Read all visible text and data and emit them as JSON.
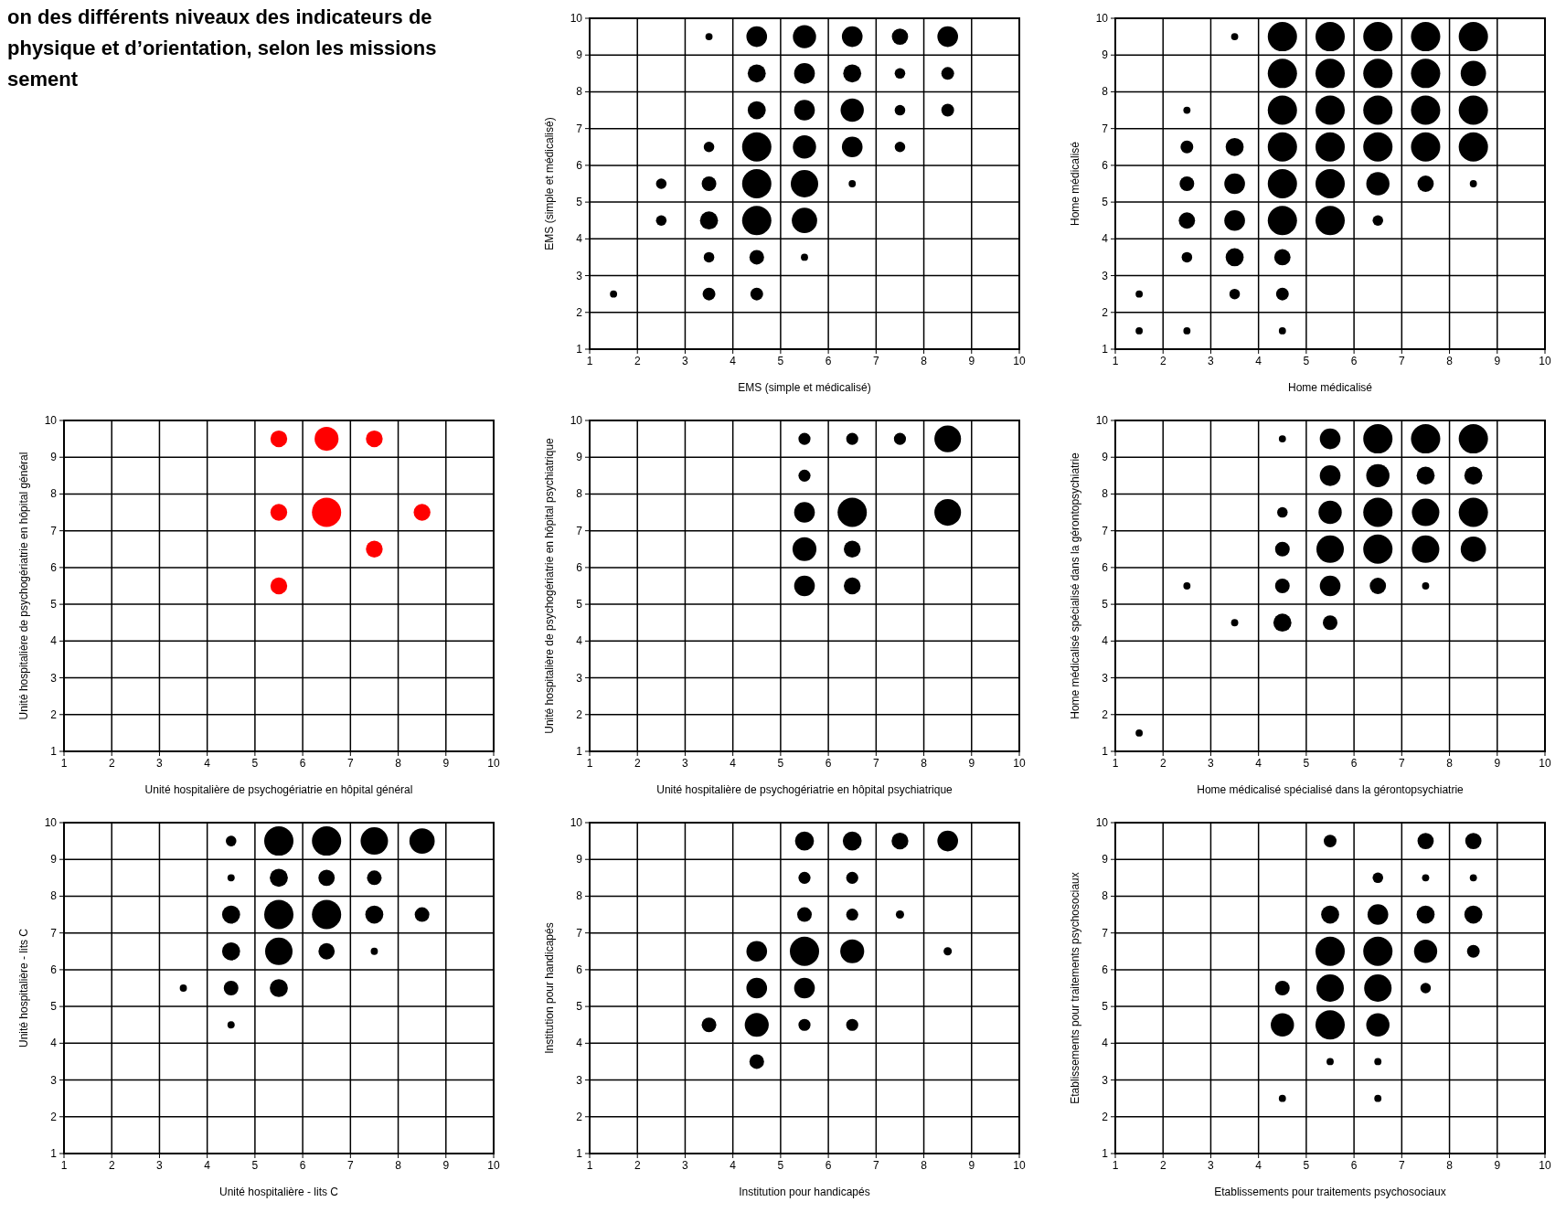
{
  "chart_data": [
    {
      "type": "other",
      "title": "on des différents niveaux des indicateurs de\nphysique et d’orientation, selon les missions\nsement"
    },
    {
      "type": "bubble",
      "xlabel": "EMS (simple et médicalisé)",
      "ylabel": "EMS (simple et médicalisé)",
      "xlim": [
        1,
        10
      ],
      "ylim": [
        1,
        10
      ],
      "xticks": [
        1,
        2,
        3,
        4,
        5,
        6,
        7,
        8,
        9,
        10
      ],
      "yticks": [
        1,
        2,
        3,
        4,
        5,
        6,
        7,
        8,
        9,
        10
      ],
      "grid": true,
      "marker": "circle",
      "series": [
        {
          "color": "#000000",
          "x": [
            3.5,
            4.5,
            5.5,
            6.5,
            7.5,
            8.5,
            4.5,
            5.5,
            6.5,
            7.5,
            8.5,
            4.5,
            5.5,
            6.5,
            7.5,
            8.5,
            3.5,
            4.5,
            5.5,
            6.5,
            7.5,
            2.5,
            3.5,
            4.5,
            5.5,
            6.5,
            2.5,
            3.5,
            4.5,
            5.5,
            3.5,
            4.5,
            5.5,
            1.5,
            3.5,
            4.5
          ],
          "values": [
            9.5,
            9.5,
            9.5,
            9.5,
            9.5,
            9.5,
            8.5,
            8.5,
            8.5,
            8.5,
            8.5,
            7.5,
            7.5,
            7.5,
            7.5,
            7.5,
            6.5,
            6.5,
            6.5,
            6.5,
            6.5,
            5.5,
            5.5,
            5.5,
            5.5,
            5.5,
            4.5,
            4.5,
            4.5,
            4.5,
            3.5,
            3.5,
            3.5,
            2.5,
            2.5,
            2.5
          ],
          "sizes": [
            0.06,
            0.5,
            0.63,
            0.5,
            0.31,
            0.5,
            0.38,
            0.5,
            0.38,
            0.13,
            0.19,
            0.38,
            0.5,
            0.63,
            0.13,
            0.19,
            0.13,
            1,
            0.63,
            0.5,
            0.13,
            0.13,
            0.25,
            1,
            0.88,
            0.06,
            0.13,
            0.38,
            1,
            0.75,
            0.13,
            0.25,
            0.06,
            0.06,
            0.19,
            0.19
          ]
        }
      ]
    },
    {
      "type": "bubble",
      "xlabel": "Home médicalisé",
      "ylabel": "Home médicalisé",
      "xlim": [
        1,
        10
      ],
      "ylim": [
        1,
        10
      ],
      "xticks": [
        1,
        2,
        3,
        4,
        5,
        6,
        7,
        8,
        9,
        10
      ],
      "yticks": [
        1,
        2,
        3,
        4,
        5,
        6,
        7,
        8,
        9,
        10
      ],
      "grid": true,
      "marker": "circle",
      "series": [
        {
          "color": "#000000",
          "x": [
            3.5,
            4.5,
            5.5,
            6.5,
            7.5,
            8.5,
            4.5,
            5.5,
            6.5,
            7.5,
            8.5,
            2.5,
            4.5,
            5.5,
            6.5,
            7.5,
            8.5,
            2.5,
            3.5,
            4.5,
            5.5,
            6.5,
            7.5,
            8.5,
            2.5,
            3.5,
            4.5,
            5.5,
            6.5,
            7.5,
            8.5,
            2.5,
            3.5,
            4.5,
            5.5,
            6.5,
            2.5,
            3.5,
            4.5,
            1.5,
            3.5,
            4.5,
            1.5,
            2.5,
            4.5
          ],
          "values": [
            9.5,
            9.5,
            9.5,
            9.5,
            9.5,
            9.5,
            8.5,
            8.5,
            8.5,
            8.5,
            8.5,
            7.5,
            7.5,
            7.5,
            7.5,
            7.5,
            7.5,
            6.5,
            6.5,
            6.5,
            6.5,
            6.5,
            6.5,
            6.5,
            5.5,
            5.5,
            5.5,
            5.5,
            5.5,
            5.5,
            5.5,
            4.5,
            4.5,
            4.5,
            4.5,
            4.5,
            3.5,
            3.5,
            3.5,
            2.5,
            2.5,
            2.5,
            1.5,
            1.5,
            1.5
          ],
          "sizes": [
            0.06,
            1,
            1,
            1,
            1,
            1,
            1,
            1,
            1,
            1,
            0.75,
            0.06,
            1,
            1,
            1,
            1,
            1,
            0.19,
            0.38,
            1,
            1,
            1,
            1,
            1,
            0.25,
            0.5,
            1,
            1,
            0.63,
            0.31,
            0.06,
            0.31,
            0.5,
            1,
            1,
            0.13,
            0.13,
            0.38,
            0.31,
            0.06,
            0.13,
            0.19,
            0.06,
            0.06,
            0.06
          ]
        }
      ]
    },
    {
      "type": "bubble",
      "xlabel": "Unité hospitalière de psychogériatrie en hôpital général",
      "ylabel": "Unité hospitalière de psychogériatrie en hôpital général",
      "xlim": [
        1,
        10
      ],
      "ylim": [
        1,
        10
      ],
      "xticks": [
        1,
        2,
        3,
        4,
        5,
        6,
        7,
        8,
        9,
        10
      ],
      "yticks": [
        1,
        2,
        3,
        4,
        5,
        6,
        7,
        8,
        9,
        10
      ],
      "grid": true,
      "marker": "circle",
      "series": [
        {
          "color": "#ff0000",
          "x": [
            5.5,
            6.5,
            7.5,
            5.5,
            6.5,
            8.5,
            7.5,
            5.5
          ],
          "values": [
            9.5,
            9.5,
            9.5,
            7.5,
            7.5,
            7.5,
            6.5,
            5.5
          ],
          "sizes": [
            0.33,
            0.67,
            0.33,
            0.33,
            1,
            0.33,
            0.33,
            0.33
          ]
        }
      ]
    },
    {
      "type": "bubble",
      "xlabel": "Unité hospitalière de psychogériatrie en hôpital psychiatrique",
      "ylabel": "Unité hospitalière de psychogériatrie en hôpital psychiatrique",
      "xlim": [
        1,
        10
      ],
      "ylim": [
        1,
        10
      ],
      "xticks": [
        1,
        2,
        3,
        4,
        5,
        6,
        7,
        8,
        9,
        10
      ],
      "yticks": [
        1,
        2,
        3,
        4,
        5,
        6,
        7,
        8,
        9,
        10
      ],
      "grid": true,
      "marker": "circle",
      "series": [
        {
          "color": "#000000",
          "x": [
            5.5,
            6.5,
            7.5,
            8.5,
            5.5,
            5.5,
            6.5,
            8.5,
            5.5,
            6.5,
            5.5,
            6.5
          ],
          "values": [
            9.5,
            9.5,
            9.5,
            9.5,
            8.5,
            7.5,
            7.5,
            7.5,
            6.5,
            6.5,
            5.5,
            5.5
          ],
          "sizes": [
            0.17,
            0.17,
            0.17,
            0.83,
            0.17,
            0.5,
            1,
            0.83,
            0.67,
            0.33,
            0.5,
            0.33
          ]
        }
      ]
    },
    {
      "type": "bubble",
      "xlabel": "Home médicalisé spécialisé dans la gérontopsychiatrie",
      "ylabel": "Home médicalisé spécialisé dans la gérontopsychiatrie",
      "xlim": [
        1,
        10
      ],
      "ylim": [
        1,
        10
      ],
      "xticks": [
        1,
        2,
        3,
        4,
        5,
        6,
        7,
        8,
        9,
        10
      ],
      "yticks": [
        1,
        2,
        3,
        4,
        5,
        6,
        7,
        8,
        9,
        10
      ],
      "grid": true,
      "marker": "circle",
      "series": [
        {
          "color": "#000000",
          "x": [
            4.5,
            5.5,
            6.5,
            7.5,
            8.5,
            5.5,
            6.5,
            7.5,
            8.5,
            4.5,
            5.5,
            6.5,
            7.5,
            8.5,
            4.5,
            5.5,
            6.5,
            7.5,
            8.5,
            2.5,
            4.5,
            5.5,
            6.5,
            7.5,
            3.5,
            4.5,
            5.5,
            1.5
          ],
          "values": [
            9.5,
            9.5,
            9.5,
            9.5,
            9.5,
            8.5,
            8.5,
            8.5,
            8.5,
            7.5,
            7.5,
            7.5,
            7.5,
            7.5,
            6.5,
            6.5,
            6.5,
            6.5,
            6.5,
            5.5,
            5.5,
            5.5,
            5.5,
            5.5,
            4.5,
            4.5,
            4.5,
            1.5
          ],
          "sizes": [
            0.06,
            0.5,
            1,
            1,
            1,
            0.5,
            0.63,
            0.38,
            0.38,
            0.13,
            0.63,
            1,
            0.88,
            1,
            0.25,
            0.88,
            1,
            0.88,
            0.75,
            0.06,
            0.25,
            0.5,
            0.31,
            0.06,
            0.06,
            0.38,
            0.25,
            0.06
          ]
        }
      ]
    },
    {
      "type": "bubble",
      "xlabel": "Unité hospitalière - lits C",
      "ylabel": "Unité hospitalière - lits C",
      "xlim": [
        1,
        10
      ],
      "ylim": [
        1,
        10
      ],
      "xticks": [
        1,
        2,
        3,
        4,
        5,
        6,
        7,
        8,
        9,
        10
      ],
      "yticks": [
        1,
        2,
        3,
        4,
        5,
        6,
        7,
        8,
        9,
        10
      ],
      "grid": true,
      "marker": "circle",
      "series": [
        {
          "color": "#000000",
          "x": [
            4.5,
            5.5,
            6.5,
            7.5,
            8.5,
            4.5,
            5.5,
            6.5,
            7.5,
            4.5,
            5.5,
            6.5,
            7.5,
            8.5,
            4.5,
            5.5,
            6.5,
            7.5,
            3.5,
            4.5,
            5.5,
            4.5
          ],
          "values": [
            9.5,
            9.5,
            9.5,
            9.5,
            9.5,
            8.5,
            8.5,
            8.5,
            8.5,
            7.5,
            7.5,
            7.5,
            7.5,
            7.5,
            6.5,
            6.5,
            6.5,
            6.5,
            5.5,
            5.5,
            5.5,
            4.5
          ],
          "sizes": [
            0.13,
            1,
            1,
            0.88,
            0.75,
            0.06,
            0.38,
            0.31,
            0.25,
            0.38,
            1,
            1,
            0.38,
            0.25,
            0.38,
            0.88,
            0.31,
            0.06,
            0.06,
            0.25,
            0.38,
            0.06
          ]
        }
      ]
    },
    {
      "type": "bubble",
      "xlabel": "Institution pour handicapés",
      "ylabel": "Institution pour handicapés",
      "xlim": [
        1,
        10
      ],
      "ylim": [
        1,
        10
      ],
      "xticks": [
        1,
        2,
        3,
        4,
        5,
        6,
        7,
        8,
        9,
        10
      ],
      "yticks": [
        1,
        2,
        3,
        4,
        5,
        6,
        7,
        8,
        9,
        10
      ],
      "grid": true,
      "marker": "circle",
      "series": [
        {
          "color": "#000000",
          "x": [
            5.5,
            6.5,
            7.5,
            8.5,
            5.5,
            6.5,
            5.5,
            6.5,
            7.5,
            4.5,
            5.5,
            6.5,
            8.5,
            4.5,
            5.5,
            3.5,
            4.5,
            5.5,
            6.5,
            4.5
          ],
          "values": [
            9.5,
            9.5,
            9.5,
            9.5,
            8.5,
            8.5,
            7.5,
            7.5,
            7.5,
            6.5,
            6.5,
            6.5,
            6.5,
            5.5,
            5.5,
            4.5,
            4.5,
            4.5,
            4.5,
            3.5
          ],
          "sizes": [
            0.42,
            0.42,
            0.33,
            0.5,
            0.17,
            0.17,
            0.25,
            0.17,
            0.08,
            0.5,
            1,
            0.67,
            0.08,
            0.5,
            0.5,
            0.25,
            0.67,
            0.17,
            0.17,
            0.25
          ]
        }
      ]
    },
    {
      "type": "bubble",
      "xlabel": "Etablissements pour traitements psychosociaux",
      "ylabel": "Etablissements pour traitements psychosociaux",
      "xlim": [
        1,
        10
      ],
      "ylim": [
        1,
        10
      ],
      "xticks": [
        1,
        2,
        3,
        4,
        5,
        6,
        7,
        8,
        9,
        10
      ],
      "yticks": [
        1,
        2,
        3,
        4,
        5,
        6,
        7,
        8,
        9,
        10
      ],
      "grid": true,
      "marker": "circle",
      "series": [
        {
          "color": "#000000",
          "x": [
            5.5,
            7.5,
            8.5,
            6.5,
            7.5,
            8.5,
            5.5,
            6.5,
            7.5,
            8.5,
            5.5,
            6.5,
            7.5,
            8.5,
            4.5,
            5.5,
            6.5,
            7.5,
            4.5,
            5.5,
            6.5,
            5.5,
            6.5,
            4.5,
            6.5
          ],
          "values": [
            9.5,
            9.5,
            9.5,
            8.5,
            8.5,
            8.5,
            7.5,
            7.5,
            7.5,
            7.5,
            6.5,
            6.5,
            6.5,
            6.5,
            5.5,
            5.5,
            5.5,
            5.5,
            4.5,
            4.5,
            4.5,
            3.5,
            3.5,
            2.5,
            2.5
          ],
          "sizes": [
            0.19,
            0.31,
            0.31,
            0.13,
            0.06,
            0.06,
            0.38,
            0.5,
            0.38,
            0.38,
            1,
            1,
            0.63,
            0.19,
            0.25,
            0.88,
            0.88,
            0.13,
            0.63,
            1,
            0.63,
            0.06,
            0.06,
            0.06,
            0.06
          ]
        }
      ]
    }
  ]
}
